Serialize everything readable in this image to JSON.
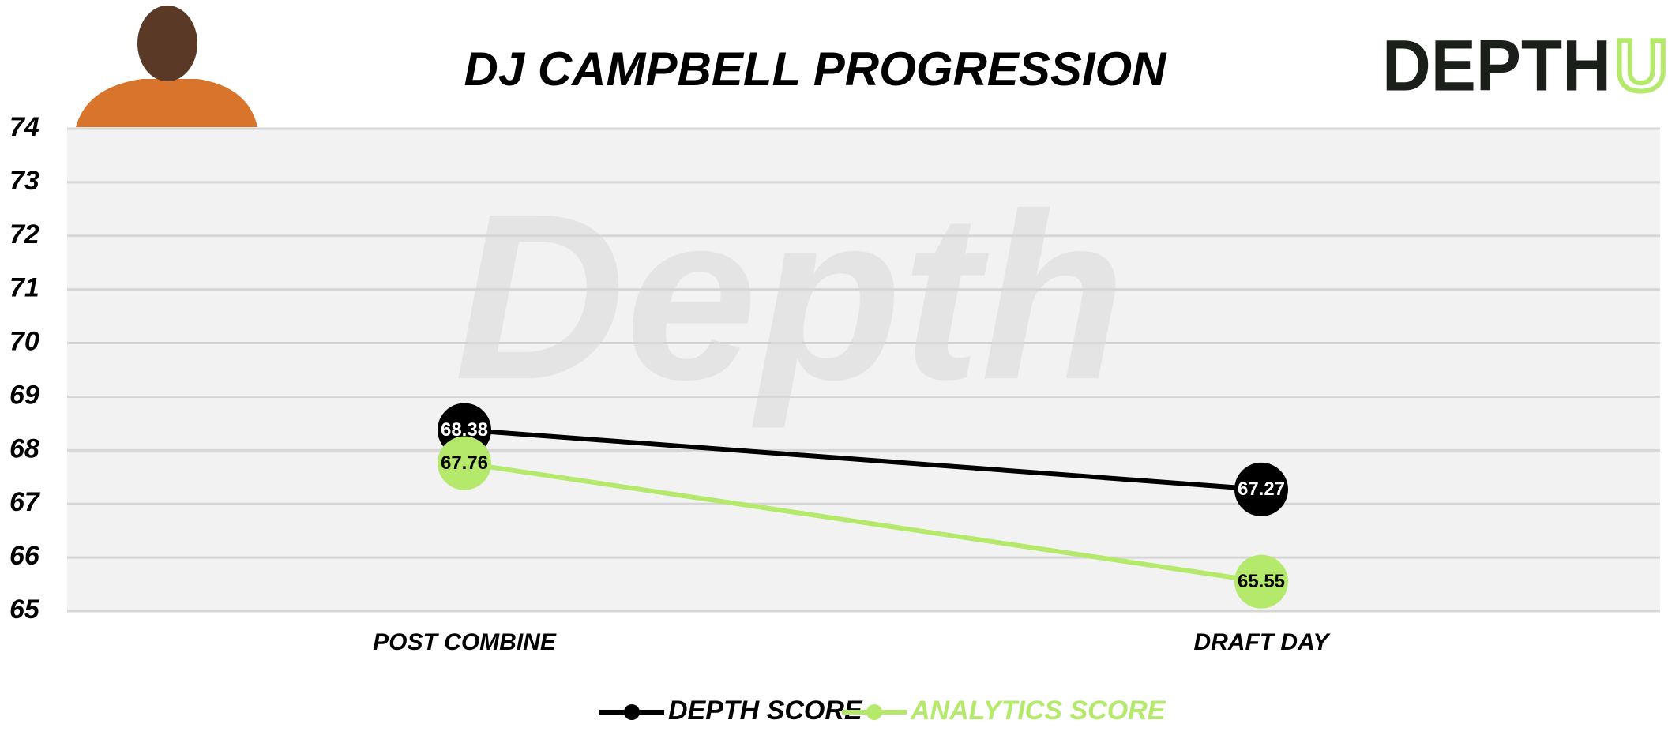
{
  "chart_data": {
    "type": "line",
    "title": "DJ CAMPBELL PROGRESSION",
    "categories": [
      "POST COMBINE",
      "DRAFT DAY"
    ],
    "series": [
      {
        "name": "DEPTH SCORE",
        "color": "#000000",
        "values": [
          68.38,
          67.27
        ]
      },
      {
        "name": "ANALYTICS SCORE",
        "color": "#b5e96b",
        "values": [
          67.76,
          65.55
        ]
      }
    ],
    "ylim": [
      65,
      74
    ],
    "yticks": [
      65,
      66,
      67,
      68,
      69,
      70,
      71,
      72,
      73,
      74
    ],
    "grid": true
  },
  "logo": {
    "text": "DEPTH",
    "accent": "U"
  },
  "watermark": "Depth"
}
